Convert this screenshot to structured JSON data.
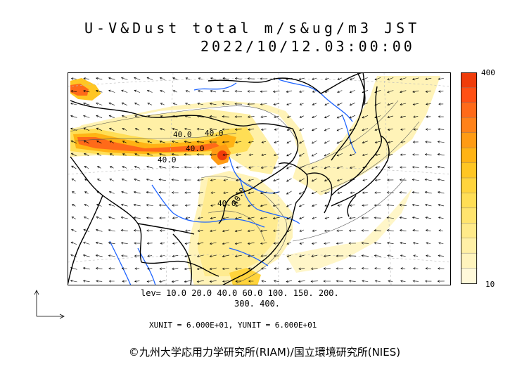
{
  "header": {
    "title": "U-V&Dust total m/s&ug/m3 JST",
    "datetime": "2022/10/12.03:00:00"
  },
  "map": {
    "contour_labels": [
      "40.0",
      "40.0",
      "40.0",
      "40.0",
      "40.0",
      "40.0"
    ],
    "land_color": "#ffffff",
    "river_color": "#1e64ff",
    "border_color": "#000000"
  },
  "colorbar": {
    "max_label": "400",
    "min_label": "10",
    "colors": [
      "#fff9da",
      "#fff4bd",
      "#fff0a6",
      "#ffea8a",
      "#ffe46e",
      "#ffde55",
      "#ffd43c",
      "#ffc623",
      "#ffb314",
      "#ff9b14",
      "#ff8219",
      "#ff6a19",
      "#ff5014",
      "#f03c0a"
    ]
  },
  "legend": {
    "levels_line1": "lev= 10.0 20.0 40.0 60.0 100. 150. 200.",
    "levels_line2": "300. 400.",
    "units": "XUNIT = 6.000E+01, YUNIT = 6.000E+01"
  },
  "footer": {
    "credit": "©九州大学応用力学研究所(RIAM)/国立環境研究所(NIES)"
  }
}
